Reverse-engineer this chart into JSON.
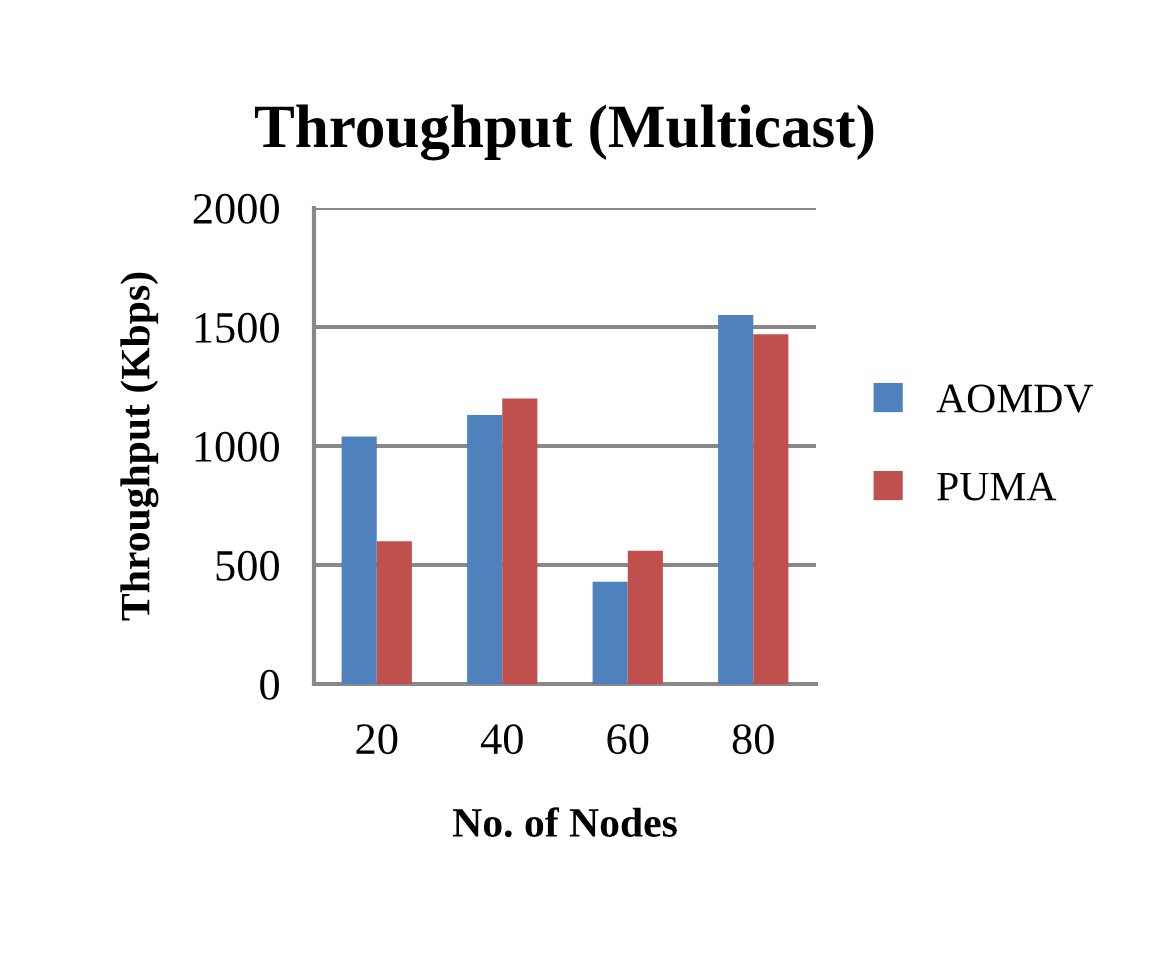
{
  "chart_data": {
    "type": "bar",
    "title": "Throughput (Multicast)",
    "xlabel": "No. of Nodes",
    "ylabel": "Throughput (Kbps)",
    "categories": [
      "20",
      "40",
      "60",
      "80"
    ],
    "series": [
      {
        "name": "AOMDV",
        "color": "#4f81bd",
        "values": [
          1040,
          1130,
          430,
          1550
        ]
      },
      {
        "name": "PUMA",
        "color": "#c0504d",
        "values": [
          600,
          1200,
          560,
          1470
        ]
      }
    ],
    "ylim": [
      0,
      2000
    ],
    "yticks": [
      0,
      500,
      1000,
      1500,
      2000
    ],
    "grid": "y",
    "legend": "right"
  }
}
